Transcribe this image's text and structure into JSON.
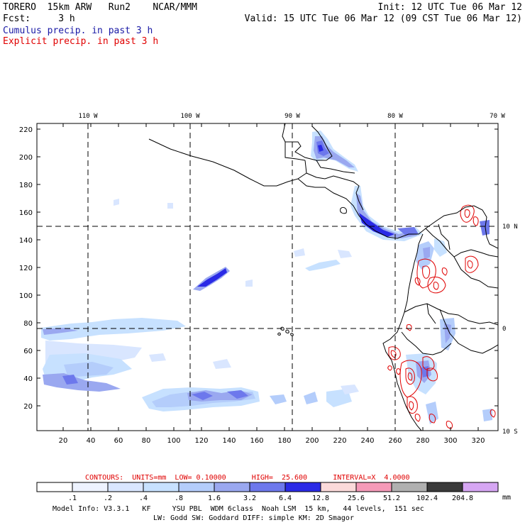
{
  "header": {
    "line1_left": "TORERO  15km ARW   Run2    NCAR/MMM",
    "line1_right": "Init: 12 UTC Tue 06 Mar 12",
    "line2_left": "Fcst:     3 h",
    "line2_right": "Valid: 15 UTC Tue 06 Mar 12 (09 CST Tue 06 Mar 12)",
    "cumulus_label": "Cumulus precip. in past 3 h",
    "explicit_label": "Explicit precip. in past 3 h"
  },
  "map": {
    "lon_labels": [
      "110 W",
      "100 W",
      "90 W",
      "80 W",
      "70 W"
    ],
    "lat_labels": [
      "10 N",
      "0",
      "10 S"
    ],
    "y_ticks": [
      "220",
      "200",
      "180",
      "160",
      "140",
      "120",
      "100",
      "80",
      "60",
      "40",
      "20"
    ],
    "x_ticks": [
      "20",
      "40",
      "60",
      "80",
      "100",
      "120",
      "140",
      "160",
      "180",
      "200",
      "220",
      "240",
      "260",
      "280",
      "300",
      "320"
    ],
    "colors": {
      "coast": "#000000",
      "grid": "#000000",
      "explicit_contour": "#e00000"
    }
  },
  "contours_line": "CONTOURS:  UNITS=mm  LOW= 0.10000      HIGH=  25.600      INTERVAL=X  4.0000",
  "legend": {
    "values": [
      ".1",
      ".2",
      ".4",
      ".8",
      "1.6",
      "3.2",
      "6.4",
      "12.8",
      "25.6",
      "51.2",
      "102.4",
      "204.8"
    ],
    "unit": "mm",
    "colors": [
      "#ffffff",
      "#eef3ff",
      "#d9e6ff",
      "#c7e1ff",
      "#b4cdfb",
      "#9aa8f0",
      "#6d78ec",
      "#2a2ae6",
      "#fbdada",
      "#f59ab8",
      "#b0b0b0",
      "#3a3a3a",
      "#d6a6f3"
    ]
  },
  "model_info": {
    "line1": "Model Info: V3.3.1   KF     YSU PBL  WDM 6class  Noah LSM  15 km,   44 levels,  151 sec",
    "line2": "LW: Godd SW: Goddard DIFF: simple KM: 2D Smagor"
  }
}
